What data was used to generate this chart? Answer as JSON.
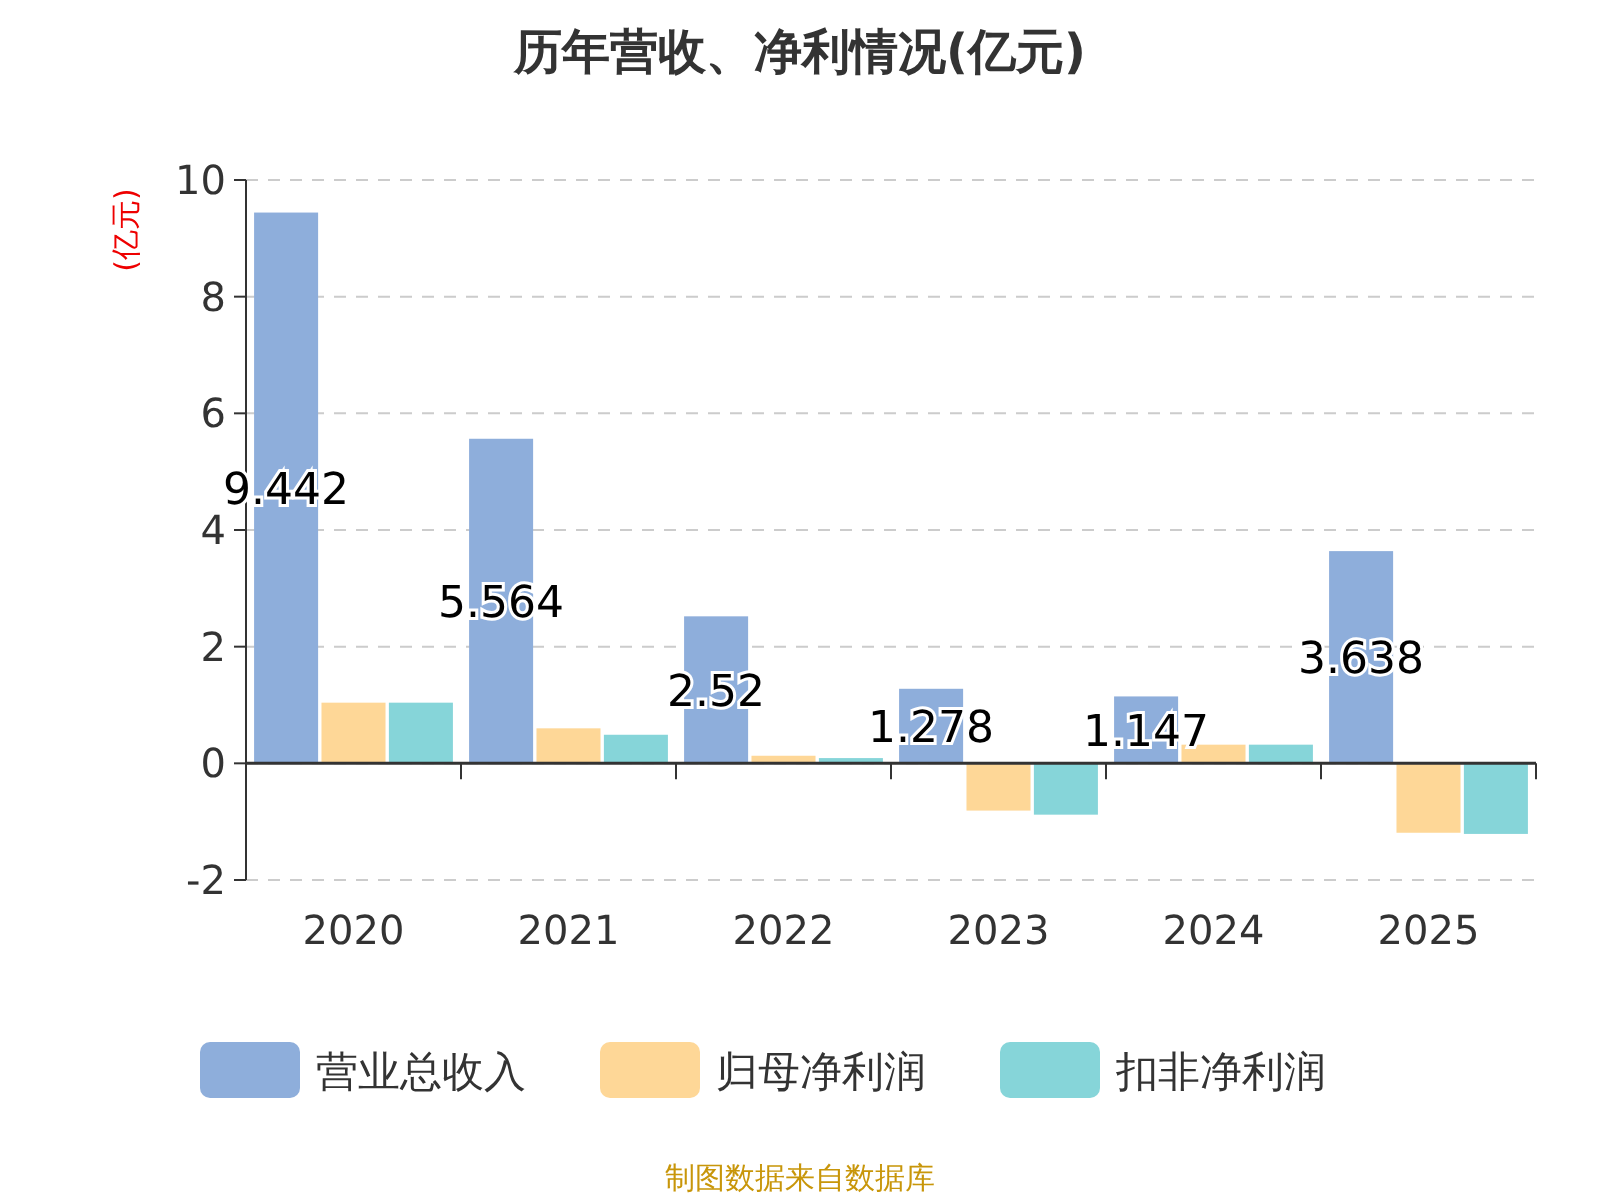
{
  "chart_data": {
    "type": "bar",
    "title": "历年营收、净利情况(亿元)",
    "ylabel": "(亿元)",
    "categories": [
      "2020",
      "2021",
      "2022",
      "2023",
      "2024",
      "2025"
    ],
    "series": [
      {
        "name": "营业总收入",
        "color": "#8eaedb",
        "values": [
          9.442,
          5.564,
          2.52,
          1.278,
          1.147,
          3.638
        ],
        "value_labels": [
          "9.442",
          "5.564",
          "2.52",
          "1.278",
          "1.147",
          "3.638"
        ]
      },
      {
        "name": "归母净利润",
        "color": "#fed797",
        "values": [
          1.04,
          0.6,
          0.13,
          -0.81,
          0.32,
          -1.19
        ]
      },
      {
        "name": "扣非净利润",
        "color": "#86d5d9",
        "values": [
          1.04,
          0.49,
          0.09,
          -0.88,
          0.32,
          -1.21
        ]
      }
    ],
    "ylim": [
      -2,
      10
    ],
    "yticks": [
      -2,
      0,
      2,
      4,
      6,
      8,
      10
    ],
    "grid": "y",
    "legend": "bottom",
    "annotations": [
      "制图数据来自数据库"
    ]
  }
}
